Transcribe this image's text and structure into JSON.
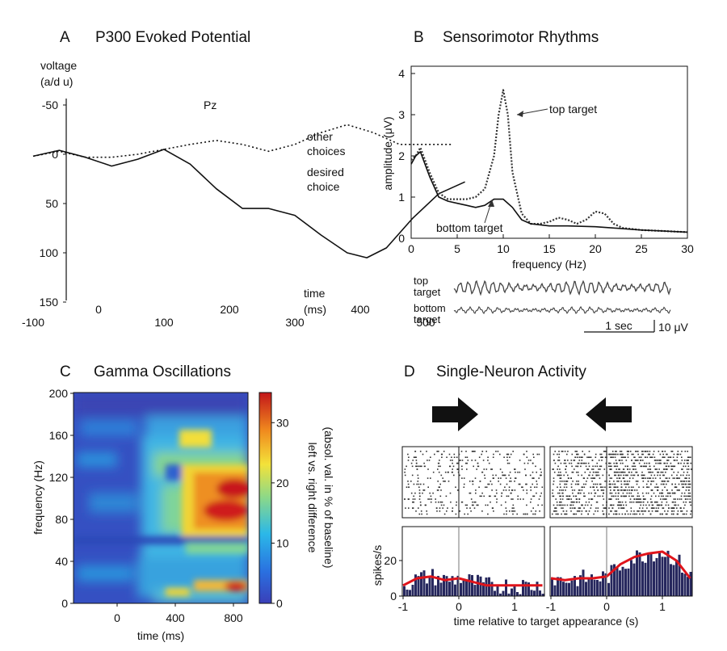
{
  "panel_a": {
    "letter": "A",
    "title": "P300 Evoked Potential",
    "ylabel_line1": "voltage",
    "ylabel_line2": "(a/d u)",
    "electrode": "Pz",
    "xlabel_line1": "time",
    "xlabel_line2": "(ms)",
    "label_other_1": "other",
    "label_other_2": "choices",
    "label_desired_1": "desired",
    "label_desired_2": "choice",
    "yticks": [
      "-50",
      "0",
      "50",
      "100",
      "150"
    ],
    "xticks": [
      "-100",
      "0",
      "100",
      "200",
      "300",
      "400",
      "500"
    ]
  },
  "panel_b": {
    "letter": "B",
    "title": "Sensorimotor Rhythms",
    "ylabel": "amplitude (μV)",
    "xlabel": "frequency (Hz)",
    "label_top": "top target",
    "label_bottom": "bottom target",
    "yticks": [
      "0",
      "1",
      "2",
      "3",
      "4"
    ],
    "xticks": [
      "0",
      "5",
      "10",
      "15",
      "20",
      "25",
      "30"
    ],
    "trace_top_1": "top",
    "trace_top_2": "target",
    "trace_bottom_1": "bottom",
    "trace_bottom_2": "target",
    "scale_time": "1 sec",
    "scale_amp": "10 μV"
  },
  "panel_c": {
    "letter": "C",
    "title": "Gamma Oscillations",
    "ylabel": "frequency (Hz)",
    "xlabel": "time (ms)",
    "yticks": [
      "0",
      "40",
      "80",
      "120",
      "160",
      "200"
    ],
    "xticks": [
      "0",
      "400",
      "800"
    ],
    "cbar_label_1": "left vs. right difference",
    "cbar_label_2": "(absol. val. in % of baseline)",
    "cbar_ticks": [
      "0",
      "10",
      "20",
      "30"
    ]
  },
  "panel_d": {
    "letter": "D",
    "title": "Single-Neuron Activity",
    "ylabel": "spikes/s",
    "xlabel": "time relative to target appearance (s)",
    "yticks": [
      "0",
      "20"
    ],
    "xticks_left": [
      "-1",
      "0",
      "1"
    ],
    "xticks_right": [
      "-1",
      "0",
      "1"
    ]
  },
  "chart_data": [
    {
      "type": "line",
      "panel": "A",
      "title": "P300 Evoked Potential",
      "xlabel": "time (ms)",
      "ylabel": "voltage (a/d u)",
      "xlim": [
        -100,
        560
      ],
      "ylim": [
        150,
        -50
      ],
      "series": [
        {
          "name": "other choices",
          "style": "dotted",
          "x": [
            -100,
            -60,
            -20,
            20,
            60,
            100,
            140,
            180,
            220,
            260,
            300,
            340,
            380,
            420,
            460,
            500,
            540
          ],
          "y": [
            2,
            -3,
            3,
            3,
            0,
            -5,
            -10,
            -14,
            -10,
            -3,
            -10,
            -22,
            -30,
            -22,
            -10,
            -10,
            -10
          ]
        },
        {
          "name": "desired choice",
          "style": "solid",
          "x": [
            -100,
            -60,
            -20,
            20,
            60,
            100,
            140,
            180,
            220,
            260,
            300,
            340,
            380,
            410,
            440,
            480,
            520,
            560
          ],
          "y": [
            2,
            -4,
            3,
            12,
            5,
            -5,
            10,
            35,
            55,
            55,
            62,
            82,
            100,
            105,
            95,
            65,
            40,
            28
          ]
        }
      ]
    },
    {
      "type": "line",
      "panel": "B",
      "title": "Sensorimotor Rhythms",
      "xlabel": "frequency (Hz)",
      "ylabel": "amplitude (μV)",
      "xlim": [
        0,
        30
      ],
      "ylim": [
        0,
        4
      ],
      "series": [
        {
          "name": "top target",
          "style": "dotted",
          "x": [
            0,
            0.5,
            1,
            2,
            3,
            4,
            5,
            6,
            7,
            8,
            9,
            9.5,
            10,
            10.5,
            11,
            12,
            13,
            14,
            15,
            16,
            17,
            18,
            19,
            20,
            21,
            22,
            23,
            25,
            27,
            30
          ],
          "y": [
            1.9,
            2.0,
            2.2,
            1.6,
            1.1,
            0.95,
            0.95,
            0.95,
            1.0,
            1.2,
            2.0,
            3.0,
            3.6,
            3.0,
            1.6,
            0.6,
            0.35,
            0.35,
            0.4,
            0.5,
            0.45,
            0.35,
            0.45,
            0.65,
            0.6,
            0.35,
            0.25,
            0.2,
            0.18,
            0.15
          ]
        },
        {
          "name": "bottom target",
          "style": "solid",
          "x": [
            0,
            0.5,
            1,
            2,
            3,
            4,
            5,
            6,
            7,
            8,
            9,
            10,
            11,
            12,
            13,
            15,
            17,
            20,
            22,
            25,
            27,
            30
          ],
          "y": [
            1.8,
            2.0,
            2.1,
            1.5,
            1.0,
            0.9,
            0.85,
            0.8,
            0.75,
            0.8,
            0.95,
            0.95,
            0.75,
            0.45,
            0.35,
            0.3,
            0.3,
            0.28,
            0.25,
            0.2,
            0.18,
            0.15
          ]
        }
      ]
    },
    {
      "type": "heatmap",
      "panel": "C",
      "title": "Gamma Oscillations",
      "xlabel": "time (ms)",
      "ylabel": "frequency (Hz)",
      "xlim": [
        -300,
        900
      ],
      "ylim": [
        0,
        200
      ],
      "colorbar": {
        "label": "left vs. right difference (absol. val. in % of baseline)",
        "range": [
          0,
          35
        ]
      },
      "hotspots": [
        {
          "t": 800,
          "f": 110,
          "value": 35
        },
        {
          "t": 780,
          "f": 85,
          "value": 33
        },
        {
          "t": 580,
          "f": 140,
          "value": 22
        },
        {
          "t": 850,
          "f": 20,
          "value": 32
        }
      ]
    },
    {
      "type": "bar",
      "panel": "D",
      "title": "Single-Neuron Activity",
      "xlabel": "time relative to target appearance (s)",
      "ylabel": "spikes/s",
      "ylim": [
        0,
        35
      ],
      "series": [
        {
          "name": "rightward target",
          "x": [
            -1,
            -0.75,
            -0.5,
            -0.25,
            0,
            0.25,
            0.5,
            0.75,
            1,
            1.25,
            1.5
          ],
          "rate": [
            6,
            10,
            11,
            9,
            10,
            8,
            6,
            6,
            6,
            6,
            6
          ]
        },
        {
          "name": "leftward target",
          "x": [
            -1,
            -0.75,
            -0.5,
            -0.25,
            0,
            0.25,
            0.5,
            0.75,
            1,
            1.25,
            1.5
          ],
          "rate": [
            10,
            9,
            10,
            10,
            11,
            18,
            22,
            24,
            25,
            20,
            10
          ]
        }
      ]
    }
  ]
}
